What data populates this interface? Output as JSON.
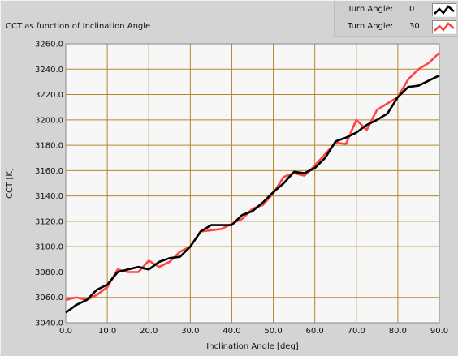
{
  "window": {
    "title": "CCT as function of Inclination Angle"
  },
  "legend": {
    "items": [
      {
        "label": "Turn Angle:",
        "value": "0",
        "color": "#000000"
      },
      {
        "label": "Turn Angle:",
        "value": "30",
        "color": "#ff4444"
      }
    ]
  },
  "colors": {
    "plot_background": "#f7f7f7",
    "grid": "#b5862a",
    "series_0": "#000000",
    "series_1": "#ff4444"
  },
  "chart_data": {
    "type": "line",
    "title": "CCT as function of Inclination Angle",
    "xlabel": "Inclination Angle [deg]",
    "ylabel": "CCT [K]",
    "xlim": [
      0,
      90
    ],
    "ylim": [
      3040,
      3260
    ],
    "xticks": [
      "0.0",
      "10.0",
      "20.0",
      "30.0",
      "40.0",
      "50.0",
      "60.0",
      "70.0",
      "80.0",
      "90.0"
    ],
    "yticks": [
      "3040.0",
      "3060.0",
      "3080.0",
      "3100.0",
      "3120.0",
      "3140.0",
      "3160.0",
      "3180.0",
      "3200.0",
      "3220.0",
      "3240.0",
      "3260.0"
    ],
    "grid": true,
    "legend_position": "top-right",
    "x": [
      0,
      2.5,
      5,
      7.5,
      10,
      12.5,
      15,
      17.5,
      20,
      22.5,
      25,
      27.5,
      30,
      32.5,
      35,
      37.5,
      40,
      42.5,
      45,
      47.5,
      50,
      52.5,
      55,
      57.5,
      60,
      62.5,
      65,
      67.5,
      70,
      72.5,
      75,
      77.5,
      80,
      82.5,
      85,
      87.5,
      90
    ],
    "series": [
      {
        "name": "Turn Angle: 0",
        "values": [
          3048,
          3054,
          3058,
          3066,
          3070,
          3080,
          3082,
          3084,
          3082,
          3088,
          3091,
          3092,
          3100,
          3112,
          3117,
          3117,
          3117,
          3125,
          3128,
          3135,
          3143,
          3150,
          3159,
          3158,
          3162,
          3170,
          3183,
          3186,
          3190,
          3196,
          3200,
          3205,
          3218,
          3226,
          3227,
          3231,
          3235
        ]
      },
      {
        "name": "Turn Angle: 30",
        "values": [
          3058,
          3060,
          3058,
          3062,
          3068,
          3082,
          3080,
          3080,
          3089,
          3084,
          3088,
          3096,
          3100,
          3112,
          3113,
          3114,
          3118,
          3122,
          3130,
          3133,
          3142,
          3155,
          3158,
          3156,
          3164,
          3173,
          3182,
          3181,
          3200,
          3192,
          3208,
          3213,
          3218,
          3232,
          3240,
          3245,
          3253
        ]
      }
    ]
  }
}
